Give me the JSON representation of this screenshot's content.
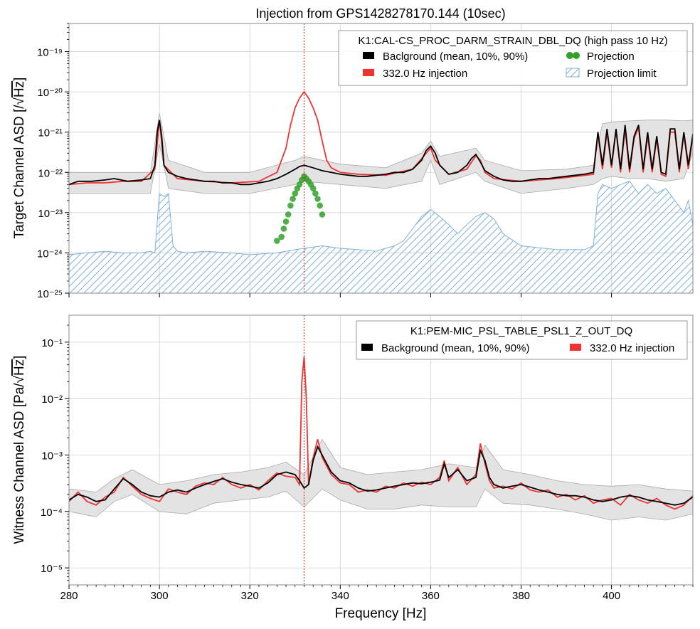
{
  "title": "Injection from GPS1428278170.144 (10sec)",
  "xlabel": "Frequency [Hz]",
  "x_ticks": [
    "280",
    "300",
    "320",
    "340",
    "360",
    "380",
    "400"
  ],
  "colors": {
    "background": "#000000",
    "band": "#e3e3e3",
    "band_edge": "#aaaaaa",
    "injection": "#ee3333",
    "projection": "#33a02c",
    "limit": "#7fb2d8",
    "marker": "#dd2222",
    "grid": "#cfcfcf"
  },
  "panels": {
    "top": {
      "ylabel_prefix": "Target Channel ASD [/",
      "ylabel_unit": "Hz",
      "ylabel_suffix": "]",
      "y_ticks": [
        "10⁻¹⁹",
        "10⁻²⁰",
        "10⁻²¹",
        "10⁻²²",
        "10⁻²³",
        "10⁻²⁴",
        "10⁻²⁵"
      ],
      "legend": {
        "title": "K1:CAL-CS_PROC_DARM_STRAIN_DBL_DQ (high pass 10 Hz)",
        "background": "Baclground (mean, 10%, 90%)",
        "injection": "332.0 Hz injection",
        "projection": "Projection",
        "limit": "Projection limit"
      }
    },
    "bottom": {
      "ylabel_prefix": "Witness Channel ASD [Pa/",
      "ylabel_unit": "Hz",
      "ylabel_suffix": "]",
      "y_ticks": [
        "10⁻¹",
        "10⁻²",
        "10⁻³",
        "10⁻⁴",
        "10⁻⁵"
      ],
      "legend": {
        "title": "K1:PEM-MIC_PSL_TABLE_PSL1_Z_OUT_DQ",
        "background": "Background (mean, 10%, 90%)",
        "injection": "332.0 Hz injection"
      }
    }
  },
  "chart_data": [
    {
      "type": "line",
      "panel": "top",
      "xlim": [
        280,
        418
      ],
      "ylim": [
        1e-25,
        5e-19
      ],
      "yscale": "log",
      "grid": true,
      "legend_position": "top-right",
      "injection_frequency": 332.0,
      "background_mean": {
        "x": [
          280,
          282,
          285,
          288,
          290,
          293,
          296,
          298,
          299,
          299.5,
          300,
          300.5,
          301,
          302,
          304,
          306,
          308,
          310,
          312,
          314,
          316,
          318,
          320,
          322,
          324,
          326,
          328,
          330,
          331,
          332,
          333,
          334,
          335,
          336,
          338,
          340,
          342,
          344,
          346,
          348,
          350,
          352,
          354,
          356,
          358,
          359,
          360,
          361,
          362,
          364,
          366,
          368,
          369,
          370,
          371,
          372,
          374,
          376,
          378,
          380,
          382,
          384,
          386,
          388,
          390,
          392,
          394,
          396,
          397,
          398,
          399,
          400,
          401,
          402,
          403,
          404,
          405,
          406,
          407,
          408,
          409,
          410,
          411,
          412,
          413,
          414,
          415,
          416,
          417,
          418
        ],
        "y": [
          5e-23,
          6e-23,
          6e-23,
          6.5e-23,
          7e-23,
          6e-23,
          6.5e-23,
          7e-23,
          1.5e-22,
          1e-21,
          2e-21,
          8e-22,
          1.5e-22,
          1e-22,
          8e-23,
          7e-23,
          6.5e-23,
          6e-23,
          6e-23,
          5.5e-23,
          5.5e-23,
          5e-23,
          5e-23,
          5.5e-23,
          6e-23,
          7e-23,
          9e-23,
          1.2e-22,
          1.4e-22,
          1.5e-22,
          1.4e-22,
          1.3e-22,
          1.2e-22,
          1.1e-22,
          1e-22,
          9e-23,
          8.5e-23,
          8e-23,
          8e-23,
          8.5e-23,
          9e-23,
          1e-22,
          1e-22,
          1.2e-22,
          2e-22,
          3.5e-22,
          4.5e-22,
          3e-22,
          1.5e-22,
          9e-23,
          1e-22,
          1.5e-22,
          2.2e-22,
          2.8e-22,
          1.8e-22,
          1.1e-22,
          8e-23,
          6.5e-23,
          6e-23,
          6e-23,
          6.5e-23,
          7e-23,
          7e-23,
          7.5e-23,
          8e-23,
          8.5e-23,
          9e-23,
          1e-22,
          1e-21,
          1.5e-22,
          1.2e-21,
          1.5e-22,
          1.2e-21,
          1.2e-22,
          1.5e-21,
          1.2e-22,
          8e-22,
          1.5e-21,
          1.2e-22,
          1e-21,
          1.2e-22,
          8e-22,
          1e-22,
          9e-23,
          1.2e-21,
          1.2e-21,
          1.2e-22,
          1e-21,
          1.5e-22,
          9e-22
        ]
      },
      "background_p10": {
        "x": [
          280,
          290,
          298,
          300,
          302,
          310,
          320,
          330,
          332,
          340,
          350,
          358,
          360,
          362,
          370,
          372,
          380,
          390,
          396,
          398,
          400,
          404,
          408,
          412,
          416,
          418
        ],
        "y": [
          3e-23,
          3e-23,
          3e-23,
          5e-22,
          4e-23,
          3e-23,
          3e-23,
          5e-23,
          6e-23,
          5e-23,
          4e-23,
          6e-23,
          2e-22,
          5e-23,
          1e-22,
          6e-23,
          3e-23,
          4e-23,
          5e-23,
          7e-23,
          8e-23,
          7e-23,
          7e-23,
          6e-23,
          7e-23,
          3e-22
        ]
      },
      "background_p90": {
        "x": [
          280,
          290,
          298,
          300,
          302,
          310,
          320,
          330,
          332,
          340,
          350,
          358,
          360,
          362,
          370,
          372,
          380,
          390,
          396,
          398,
          400,
          404,
          408,
          412,
          416,
          418
        ],
        "y": [
          1e-22,
          1e-22,
          1e-22,
          3e-21,
          2e-22,
          1e-22,
          1e-22,
          2e-22,
          2.5e-22,
          1.6e-22,
          1.3e-22,
          3e-22,
          6e-22,
          2.5e-22,
          4e-22,
          2e-22,
          1.1e-22,
          1.2e-22,
          1.5e-22,
          1.6e-21,
          1.8e-21,
          1.9e-21,
          2e-21,
          2e-21,
          1.9e-21,
          2e-21
        ]
      },
      "injection": {
        "x": [
          280,
          284,
          288,
          292,
          296,
          299,
          300,
          301,
          304,
          310,
          316,
          322,
          326,
          328,
          329,
          330,
          331,
          332,
          333,
          334,
          335,
          336,
          337,
          338,
          340,
          344,
          350,
          356,
          359,
          360,
          361,
          364,
          368,
          370,
          371,
          372,
          374,
          380,
          388,
          396,
          397,
          398,
          399,
          400,
          401,
          402,
          403,
          404,
          405,
          406,
          407,
          408,
          409,
          410,
          411,
          412,
          413,
          414,
          415,
          416,
          417,
          418
        ],
        "y": [
          5e-23,
          5.5e-23,
          5.5e-23,
          6e-23,
          6e-23,
          1.2e-22,
          2e-21,
          1.5e-22,
          7e-23,
          6e-23,
          5.5e-23,
          6e-23,
          1e-22,
          4e-22,
          1.5e-21,
          4e-21,
          7e-21,
          1e-20,
          7e-21,
          4e-21,
          2e-21,
          6e-22,
          2e-22,
          1.3e-22,
          1e-22,
          9e-23,
          8.5e-23,
          1.2e-22,
          3e-22,
          4e-22,
          2e-22,
          9e-23,
          1.2e-22,
          2.6e-22,
          2e-22,
          1e-22,
          7e-23,
          6e-23,
          7e-23,
          9e-23,
          9e-22,
          1.2e-22,
          1e-21,
          1.3e-22,
          1.1e-21,
          1e-22,
          1.2e-21,
          1e-22,
          7e-22,
          1.3e-21,
          1e-22,
          8e-22,
          1e-22,
          7e-22,
          9e-23,
          8e-23,
          1e-21,
          1e-21,
          1e-22,
          9e-22,
          1.2e-22,
          8e-22
        ]
      },
      "projection": {
        "x": [
          326,
          327,
          327.5,
          328,
          328.5,
          329,
          329.5,
          330,
          330.5,
          331,
          331.5,
          332,
          332.5,
          333,
          333.5,
          334,
          334.5,
          335,
          335.5,
          336
        ],
        "y": [
          2e-24,
          2.5e-24,
          4e-24,
          6e-24,
          9e-24,
          1.5e-23,
          2.2e-23,
          3e-23,
          4e-23,
          5e-23,
          6.5e-23,
          8e-23,
          7e-23,
          6e-23,
          5e-23,
          4e-23,
          3e-23,
          2.2e-23,
          1.5e-23,
          9e-24
        ]
      },
      "projection_limit": {
        "x": [
          280,
          284,
          288,
          292,
          296,
          298,
          299,
          300,
          301,
          302,
          303,
          304,
          306,
          310,
          316,
          320,
          326,
          330,
          332,
          336,
          340,
          344,
          348,
          350,
          352,
          354,
          356,
          358,
          360,
          362,
          364,
          366,
          368,
          370,
          372,
          374,
          376,
          380,
          388,
          394,
          396,
          397,
          398,
          400,
          402,
          404,
          406,
          408,
          410,
          412,
          414,
          416,
          417,
          418
        ],
        "y": [
          9e-25,
          1e-24,
          1.1e-24,
          1e-24,
          1e-24,
          1.1e-24,
          1e-24,
          3e-23,
          2.5e-23,
          3e-23,
          1.5e-24,
          1.1e-24,
          1e-24,
          1.1e-24,
          1e-24,
          9e-25,
          1e-24,
          1.2e-24,
          1.3e-24,
          1.5e-24,
          1.3e-24,
          1.2e-24,
          1.1e-24,
          1.3e-24,
          1.5e-24,
          2e-24,
          4e-24,
          8e-24,
          1.2e-23,
          8e-24,
          5e-24,
          3e-24,
          5e-24,
          8e-24,
          1e-23,
          7e-24,
          3e-24,
          1.5e-24,
          1.2e-24,
          1.2e-24,
          1.5e-24,
          3e-23,
          5e-23,
          4e-23,
          5e-23,
          6e-23,
          3e-23,
          5e-23,
          3e-23,
          4e-23,
          2e-23,
          1e-23,
          2e-23,
          5e-24
        ]
      }
    },
    {
      "type": "line",
      "panel": "bottom",
      "xlim": [
        280,
        418
      ],
      "ylim": [
        5e-06,
        0.3
      ],
      "yscale": "log",
      "grid": true,
      "legend_position": "top-right",
      "injection_frequency": 332.0,
      "background_mean": {
        "x": [
          280,
          282,
          284,
          286,
          288,
          290,
          292,
          294,
          296,
          298,
          300,
          302,
          304,
          306,
          308,
          310,
          312,
          314,
          316,
          318,
          320,
          322,
          324,
          326,
          328,
          330,
          331,
          332,
          333,
          334,
          335,
          336,
          338,
          340,
          342,
          344,
          346,
          348,
          350,
          352,
          354,
          356,
          358,
          360,
          362,
          363,
          364,
          366,
          368,
          370,
          371,
          372,
          373,
          374,
          376,
          378,
          380,
          382,
          384,
          386,
          388,
          390,
          392,
          394,
          396,
          398,
          400,
          402,
          404,
          406,
          408,
          410,
          412,
          414,
          416,
          418
        ],
        "y": [
          0.00016,
          0.0002,
          0.00018,
          0.00015,
          0.00016,
          0.00025,
          0.00038,
          0.0003,
          0.00022,
          0.00019,
          0.00018,
          0.00022,
          0.00024,
          0.00022,
          0.00026,
          0.0003,
          0.00034,
          0.00038,
          0.00033,
          0.0003,
          0.00028,
          0.00026,
          0.00032,
          0.00045,
          0.0005,
          0.00045,
          0.00035,
          0.00026,
          0.0003,
          0.0008,
          0.0014,
          0.001,
          0.0005,
          0.00035,
          0.00032,
          0.00026,
          0.00023,
          0.00024,
          0.00026,
          0.00028,
          0.0003,
          0.00032,
          0.00031,
          0.00033,
          0.00036,
          0.0007,
          0.0004,
          0.00055,
          0.00035,
          0.0004,
          0.0012,
          0.0008,
          0.0004,
          0.0003,
          0.00026,
          0.00028,
          0.0003,
          0.00027,
          0.00024,
          0.00022,
          0.0002,
          0.00019,
          0.00019,
          0.00018,
          0.00016,
          0.00015,
          0.00016,
          0.00018,
          0.00019,
          0.00018,
          0.00016,
          0.00015,
          0.00014,
          0.00013,
          0.00014,
          0.00018
        ]
      },
      "background_p10": {
        "x": [
          280,
          286,
          290,
          294,
          300,
          306,
          312,
          318,
          324,
          328,
          332,
          336,
          340,
          346,
          352,
          358,
          364,
          370,
          372,
          376,
          382,
          388,
          394,
          400,
          406,
          412,
          418
        ],
        "y": [
          0.0001,
          8e-05,
          0.00015,
          0.0002,
          0.0001,
          9e-05,
          0.00014,
          0.00016,
          0.00018,
          0.00023,
          0.00012,
          0.00025,
          0.00016,
          0.00011,
          0.00011,
          0.00013,
          0.00012,
          0.00012,
          0.00025,
          0.00014,
          0.00013,
          0.00011,
          9e-05,
          7e-05,
          8e-05,
          7e-05,
          9e-05
        ]
      },
      "background_p90": {
        "x": [
          280,
          286,
          290,
          294,
          300,
          306,
          312,
          318,
          324,
          328,
          332,
          336,
          340,
          346,
          352,
          358,
          364,
          370,
          372,
          376,
          382,
          388,
          394,
          400,
          406,
          412,
          418
        ],
        "y": [
          0.00025,
          0.00022,
          0.00038,
          0.00055,
          0.0003,
          0.00035,
          0.00045,
          0.0005,
          0.0006,
          0.00075,
          0.00045,
          0.0019,
          0.0006,
          0.00045,
          0.0005,
          0.00055,
          0.0007,
          0.0006,
          0.0015,
          0.00055,
          0.00045,
          0.00035,
          0.0003,
          0.00028,
          0.0003,
          0.00025,
          0.00023
        ]
      },
      "injection": {
        "x": [
          280,
          282,
          284,
          286,
          288,
          290,
          292,
          294,
          296,
          298,
          300,
          302,
          304,
          306,
          308,
          310,
          312,
          314,
          316,
          318,
          320,
          322,
          324,
          326,
          328,
          330,
          331,
          331.5,
          332,
          332.5,
          333,
          334,
          335,
          336,
          338,
          340,
          342,
          344,
          346,
          348,
          350,
          352,
          354,
          356,
          358,
          360,
          362,
          363,
          364,
          366,
          368,
          370,
          371,
          372,
          373,
          374,
          376,
          378,
          380,
          382,
          384,
          386,
          388,
          390,
          392,
          394,
          396,
          398,
          400,
          402,
          404,
          406,
          408,
          410,
          412,
          414,
          416,
          418
        ],
        "y": [
          0.00015,
          0.00022,
          0.00015,
          0.00013,
          0.00018,
          0.00022,
          0.0004,
          0.00028,
          0.0002,
          0.00017,
          0.00015,
          0.00025,
          0.00022,
          0.0002,
          0.00028,
          0.00032,
          0.0003,
          0.0004,
          0.0003,
          0.00026,
          0.0003,
          0.00024,
          0.00035,
          0.00048,
          0.00042,
          0.0004,
          0.0003,
          0.02,
          0.055,
          0.01,
          0.0003,
          0.0009,
          0.0019,
          0.0009,
          0.00045,
          0.00032,
          0.0003,
          0.00022,
          0.00024,
          0.00022,
          0.00028,
          0.00026,
          0.00032,
          0.00028,
          0.00033,
          0.0003,
          0.0004,
          0.0008,
          0.00035,
          0.0006,
          0.0003,
          0.00045,
          0.0016,
          0.0007,
          0.00035,
          0.00026,
          0.00028,
          0.00025,
          0.00032,
          0.00024,
          0.00022,
          0.00024,
          0.00018,
          0.0002,
          0.00016,
          0.00019,
          0.00014,
          0.00016,
          0.00017,
          0.00013,
          0.0002,
          0.00016,
          0.00014,
          0.00017,
          0.00013,
          0.00011,
          0.00013,
          0.00019
        ]
      }
    }
  ]
}
